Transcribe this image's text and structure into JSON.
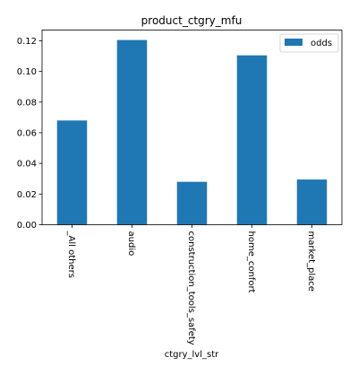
{
  "chart_data": {
    "type": "bar",
    "title": "product_ctgry_mfu",
    "xlabel": "ctgry_lvl_str",
    "ylabel": "",
    "categories": [
      "_All others",
      "audio",
      "construction_tools_safety",
      "home_confort",
      "market_place"
    ],
    "series": [
      {
        "name": "odds",
        "values": [
          0.068,
          0.1205,
          0.028,
          0.1105,
          0.0295
        ],
        "color": "#1f77b4"
      }
    ],
    "ylim": [
      0,
      0.127
    ],
    "yticks": [
      0.0,
      0.02,
      0.04,
      0.06,
      0.08,
      0.1,
      0.12
    ],
    "ytick_labels": [
      "0.00",
      "0.02",
      "0.04",
      "0.06",
      "0.08",
      "0.10",
      "0.12"
    ],
    "grid": false,
    "legend": {
      "position": "top-right",
      "entries": [
        "odds"
      ]
    }
  }
}
